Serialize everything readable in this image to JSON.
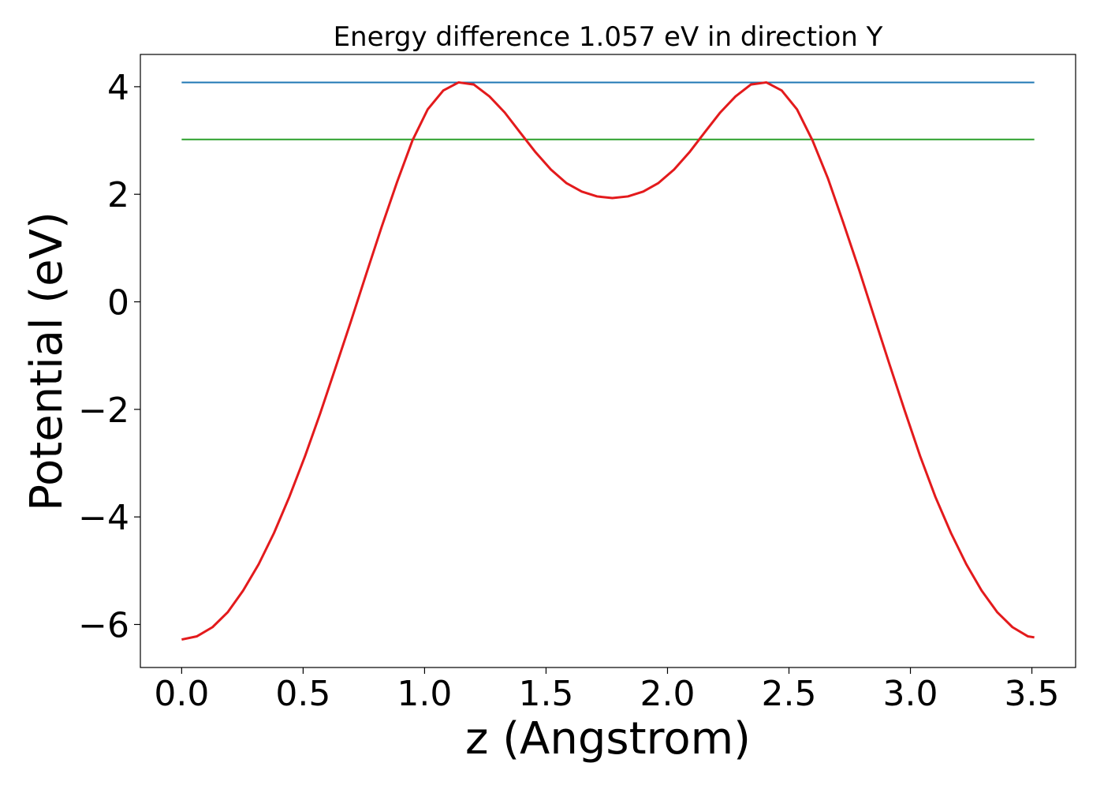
{
  "chart_data": {
    "type": "line",
    "title": "Energy difference 1.057 eV in direction Y",
    "xlabel": "z (Angstrom)",
    "ylabel": "Potential (eV)",
    "xlim": [
      -0.17,
      3.68
    ],
    "ylim": [
      -6.8,
      4.6
    ],
    "x_ticks": [
      0.0,
      0.5,
      1.0,
      1.5,
      2.0,
      2.5,
      3.0,
      3.5
    ],
    "x_tick_labels": [
      "0.0",
      "0.5",
      "1.0",
      "1.5",
      "2.0",
      "2.5",
      "3.0",
      "3.5"
    ],
    "y_ticks": [
      -6,
      -4,
      -2,
      0,
      2,
      4
    ],
    "y_tick_labels": [
      "−6",
      "−4",
      "−2",
      "0",
      "2",
      "4"
    ],
    "grid": false,
    "hlines": [
      {
        "y": 4.08,
        "x_range": [
          0.0,
          3.51
        ],
        "color": "#1f77b4"
      },
      {
        "y": 3.02,
        "x_range": [
          0.0,
          3.51
        ],
        "color": "#2ca02c"
      }
    ],
    "series": [
      {
        "color": "#e31a1c",
        "x": [
          0.0,
          0.063,
          0.127,
          0.19,
          0.253,
          0.317,
          0.38,
          0.443,
          0.507,
          0.57,
          0.633,
          0.697,
          0.76,
          0.823,
          0.887,
          0.95,
          1.013,
          1.077,
          1.14,
          1.203,
          1.267,
          1.33,
          1.393,
          1.457,
          1.52,
          1.583,
          1.647,
          1.71,
          1.773,
          1.837,
          1.9,
          1.963,
          2.027,
          2.09,
          2.153,
          2.217,
          2.28,
          2.343,
          2.407,
          2.47,
          2.533,
          2.597,
          2.66,
          2.723,
          2.787,
          2.85,
          2.913,
          2.977,
          3.04,
          3.103,
          3.167,
          3.23,
          3.293,
          3.357,
          3.42,
          3.483,
          3.51
        ],
        "y": [
          -6.28,
          -6.22,
          -6.05,
          -5.77,
          -5.37,
          -4.88,
          -4.3,
          -3.63,
          -2.88,
          -2.08,
          -1.23,
          -0.36,
          0.52,
          1.39,
          2.23,
          3.0,
          3.58,
          3.93,
          4.08,
          4.04,
          3.82,
          3.52,
          3.15,
          2.78,
          2.46,
          2.21,
          2.05,
          1.96,
          1.93,
          1.96,
          2.05,
          2.21,
          2.46,
          2.78,
          3.15,
          3.52,
          3.82,
          4.04,
          4.08,
          3.93,
          3.58,
          3.0,
          2.3,
          1.48,
          0.62,
          -0.27,
          -1.15,
          -2.03,
          -2.87,
          -3.63,
          -4.3,
          -4.88,
          -5.37,
          -5.77,
          -6.05,
          -6.22,
          -6.24
        ]
      }
    ]
  }
}
